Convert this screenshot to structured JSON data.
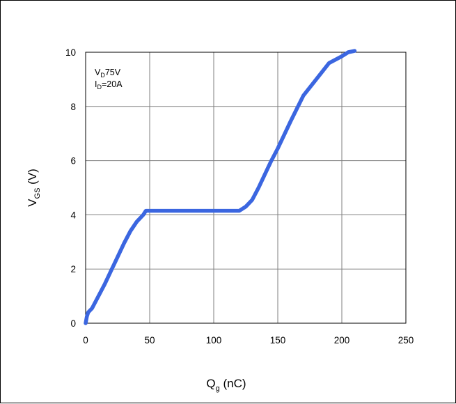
{
  "chart_data": {
    "type": "line",
    "title": "",
    "xlabel": {
      "main": "Q",
      "sub": "g",
      "unit": " (nC)"
    },
    "ylabel": {
      "main": "V",
      "sub": "GS",
      "unit": " (V)"
    },
    "xlim": [
      0,
      250
    ],
    "ylim": [
      0,
      10
    ],
    "xticks": [
      0,
      50,
      100,
      150,
      200,
      250
    ],
    "yticks": [
      0,
      2,
      4,
      6,
      8,
      10
    ],
    "grid": true,
    "legend": "none",
    "annotations": [
      {
        "main": "V",
        "sub": "D",
        "rest": "75V"
      },
      {
        "main": "I",
        "sub": "D",
        "rest": "=20A"
      }
    ],
    "series_color": "#3b66e0",
    "series": [
      {
        "x": [
          0,
          1,
          2,
          5,
          10,
          15,
          20,
          25,
          30,
          35,
          40,
          45,
          47,
          50,
          60,
          70,
          80,
          90,
          100,
          110,
          120,
          125,
          130,
          135,
          140,
          145,
          150,
          160,
          170,
          180,
          190,
          200,
          205,
          210
        ],
        "y": [
          0,
          0.25,
          0.4,
          0.55,
          1.0,
          1.45,
          1.95,
          2.45,
          2.95,
          3.4,
          3.75,
          4.0,
          4.15,
          4.15,
          4.15,
          4.15,
          4.15,
          4.15,
          4.15,
          4.15,
          4.15,
          4.3,
          4.55,
          5.0,
          5.5,
          6.0,
          6.45,
          7.45,
          8.4,
          9.0,
          9.6,
          9.85,
          10.0,
          10.05
        ]
      }
    ]
  }
}
